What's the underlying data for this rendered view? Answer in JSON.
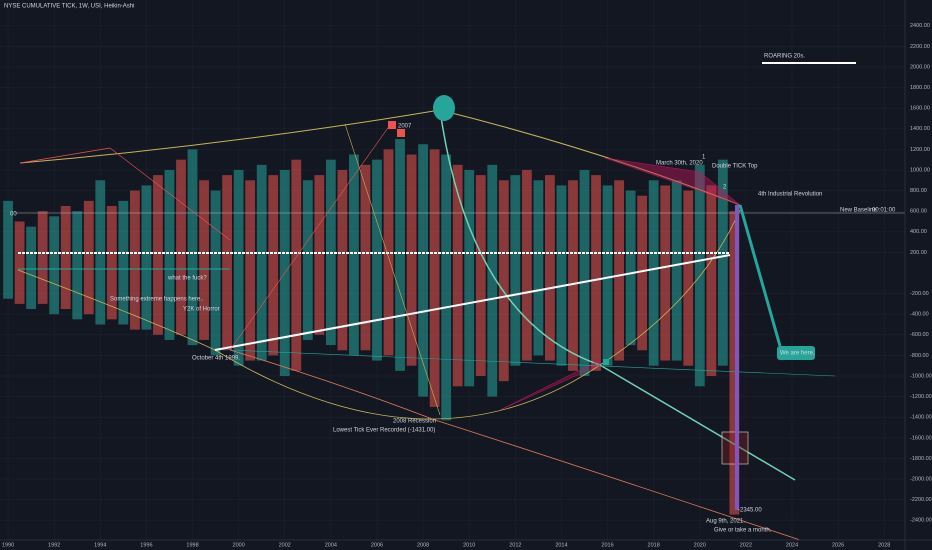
{
  "header": {
    "title": "NYSE CUMULATIVE TICK, 1W, USI, Heikin-Ashi"
  },
  "chart_data": {
    "type": "range",
    "x": [
      1990,
      1990.5,
      1991,
      1991.5,
      1992,
      1992.5,
      1993,
      1993.5,
      1994,
      1994.5,
      1995,
      1995.5,
      1996,
      1996.5,
      1997,
      1997.5,
      1998,
      1998.5,
      1999,
      1999.5,
      2000,
      2000.5,
      2001,
      2001.5,
      2002,
      2002.5,
      2003,
      2003.5,
      2004,
      2004.5,
      2005,
      2005.5,
      2006,
      2006.5,
      2007,
      2007.5,
      2008,
      2008.5,
      2009,
      2009.5,
      2010,
      2010.5,
      2011,
      2011.5,
      2012,
      2012.5,
      2013,
      2013.5,
      2014,
      2014.5,
      2015,
      2015.5,
      2016,
      2016.5,
      2017,
      2017.5,
      2018,
      2018.5,
      2019,
      2019.5,
      2020,
      2020.5,
      2021,
      2021.5
    ],
    "high": [
      700,
      500,
      450,
      600,
      550,
      650,
      600,
      700,
      900,
      650,
      700,
      800,
      850,
      950,
      1000,
      1100,
      1200,
      900,
      800,
      950,
      1000,
      900,
      1050,
      950,
      1000,
      1100,
      900,
      950,
      1100,
      1000,
      1150,
      1050,
      1100,
      1200,
      1300,
      1150,
      1250,
      1200,
      1150,
      1050,
      1000,
      950,
      1050,
      900,
      950,
      1000,
      900,
      950,
      850,
      900,
      1000,
      950,
      850,
      900,
      800,
      750,
      900,
      850,
      900,
      800,
      1050,
      850,
      1100,
      600
    ],
    "low": [
      -250,
      -300,
      -350,
      -300,
      -400,
      -350,
      -450,
      -400,
      -500,
      -450,
      -500,
      -550,
      -550,
      -600,
      -650,
      -600,
      -700,
      -650,
      -800,
      -750,
      -900,
      -850,
      -850,
      -800,
      -1000,
      -950,
      -650,
      -600,
      -700,
      -750,
      -800,
      -750,
      -850,
      -800,
      -950,
      -900,
      -1200,
      -1300,
      -1431,
      -1100,
      -1100,
      -1000,
      -1200,
      -1050,
      -900,
      -850,
      -800,
      -850,
      -900,
      -950,
      -1000,
      -950,
      -900,
      -850,
      -700,
      -750,
      -900,
      -850,
      -850,
      -900,
      -1100,
      -1000,
      -900,
      -2345
    ],
    "colors": [
      "#26a69a",
      "#ef5350"
    ],
    "xlim": [
      1989.65,
      2028.9
    ],
    "xticks": [
      1990,
      1992,
      1994,
      1996,
      1998,
      2000,
      2002,
      2004,
      2006,
      2008,
      2010,
      2012,
      2014,
      2016,
      2018,
      2020,
      2022,
      2024,
      2026,
      2028
    ],
    "ylim": [
      -2592,
      2650
    ],
    "yticks": [
      {
        "value": 2400,
        "label": "2400.00"
      },
      {
        "value": 2200,
        "label": "2200.00"
      },
      {
        "value": 2000,
        "label": "2000.00"
      },
      {
        "value": 1800,
        "label": "1800.00"
      },
      {
        "value": 1600,
        "label": "1600.00"
      },
      {
        "value": 1400,
        "label": "1400.00"
      },
      {
        "value": 1200,
        "label": "1200.00"
      },
      {
        "value": 1000,
        "label": "1000.00"
      },
      {
        "value": 800,
        "label": "800.00"
      },
      {
        "value": 600,
        "label": "600.00"
      },
      {
        "value": 400,
        "label": "400.00"
      },
      {
        "value": 200,
        "label": "200.00"
      },
      {
        "value": -200,
        "label": "-200.00"
      },
      {
        "value": -400,
        "label": "-400.00"
      },
      {
        "value": -600,
        "label": "-600.00"
      },
      {
        "value": -800,
        "label": "-800.00"
      },
      {
        "value": -1000,
        "label": "-1000.00"
      },
      {
        "value": -1200,
        "label": "-1200.00"
      },
      {
        "value": -1400,
        "label": "-1400.00"
      },
      {
        "value": -1600,
        "label": "-1600.00"
      },
      {
        "value": -1800,
        "label": "-1800.00"
      },
      {
        "value": -2000,
        "label": "-2000.00"
      },
      {
        "value": -2200,
        "label": "-2200.00"
      },
      {
        "value": -2400,
        "label": "-2400.00"
      }
    ],
    "grid": true,
    "annotations": [
      "ROARING 20s.",
      "2007",
      "March 30th, 2020",
      "Double TICK Top",
      "1",
      "2",
      "4th Industrial Revolution",
      "New Baseline",
      "00:01:00",
      "00",
      "what the fuck?",
      "Something extreme happens here..",
      "Y2K of Horror",
      "October 4th 1999.",
      "We are here.",
      "2008 Recession",
      "Lowest Tick Ever Recorded (-1431.00)",
      "-2345.00",
      "Aug 9th, 2021.",
      "Give or take a month."
    ]
  }
}
